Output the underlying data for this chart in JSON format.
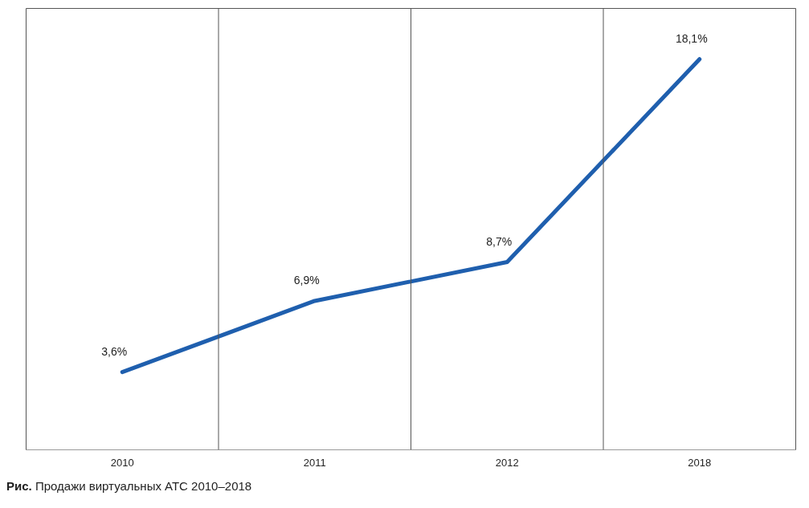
{
  "chart_data": {
    "type": "line",
    "categories": [
      "2010",
      "2011",
      "2012",
      "2018"
    ],
    "series": [
      {
        "color": "#1f5fae",
        "values": [
          3.6,
          6.9,
          8.7,
          18.1
        ],
        "value_labels": [
          "3,6%",
          "6,9%",
          "8,7%",
          "18,1%"
        ]
      }
    ],
    "grid": "x",
    "marker": "none",
    "line_style": "solid",
    "annotations": [
      "Рис. Продажи виртуальных АТС 2010–2018"
    ]
  }
}
